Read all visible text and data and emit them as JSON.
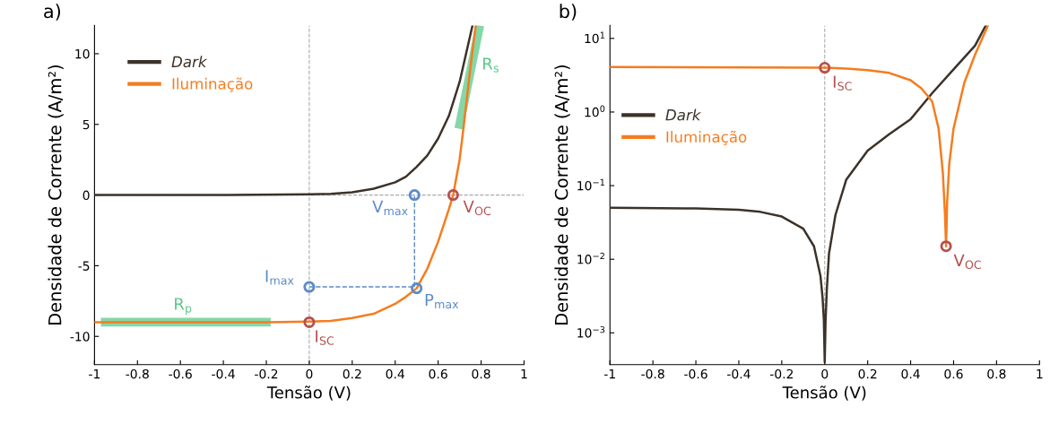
{
  "chart_data": [
    {
      "type": "line",
      "title": "a)",
      "xlabel": "Tensão (V)",
      "ylabel": "Densidade de Corrente (A/m²)",
      "xlim": [
        -1,
        1
      ],
      "ylim": [
        -12,
        12
      ],
      "xticks": [
        -1,
        -0.8,
        -0.6,
        -0.4,
        -0.2,
        0,
        0.2,
        0.4,
        0.6,
        0.8,
        1
      ],
      "yticks": [
        -10,
        -5,
        0,
        5,
        10
      ],
      "legend": "top left",
      "grid": false,
      "ref_lines": [
        {
          "axis": "x",
          "value": 0,
          "color": "#aaaaaa",
          "line_style": "dashed"
        },
        {
          "axis": "y",
          "value": 0,
          "color": "#aaaaaa",
          "line_style": "dashed"
        }
      ],
      "series": [
        {
          "name": "Dark",
          "color": "#3d3228",
          "x": [
            -1,
            -0.5,
            0,
            0.1,
            0.2,
            0.3,
            0.4,
            0.45,
            0.5,
            0.55,
            0.6,
            0.65,
            0.7,
            0.73,
            0.76
          ],
          "values": [
            0,
            0,
            0.05,
            0.08,
            0.2,
            0.45,
            0.9,
            1.3,
            2.0,
            2.8,
            4.0,
            5.6,
            8,
            10,
            12
          ]
        },
        {
          "name": "Iluminação",
          "color": "#f57c1f",
          "x": [
            -1,
            -0.2,
            0,
            0.1,
            0.2,
            0.3,
            0.4,
            0.45,
            0.5,
            0.55,
            0.6,
            0.65,
            0.67,
            0.7,
            0.72,
            0.75,
            0.775
          ],
          "values": [
            -9,
            -9,
            -8.95,
            -8.9,
            -8.7,
            -8.4,
            -7.7,
            -7.2,
            -6.6,
            -5.2,
            -3.3,
            -1.0,
            0,
            2.5,
            5,
            9,
            12
          ]
        },
        {
          "color": "#5cc98a",
          "x": [
            -0.95,
            -0.575,
            -0.2
          ],
          "values": [
            -9,
            -9,
            -9
          ]
        },
        {
          "color": "#5cc98a",
          "x": [
            0.7,
            0.745,
            0.79
          ],
          "values": [
            5,
            8.35,
            11.7
          ]
        },
        {
          "color": "#5b8bc9",
          "line_style": "dashed",
          "x": [
            0,
            0.49,
            0.49
          ],
          "values": [
            -6.5,
            -6.5,
            0
          ]
        },
        {
          "type": "scatter",
          "marker": "circle",
          "color": "#b5504f",
          "x": [
            0,
            0.67
          ],
          "values": [
            -9,
            0
          ]
        },
        {
          "type": "scatter",
          "marker": "circle",
          "color": "#5b8bc9",
          "x": [
            0.49,
            0,
            0.5
          ],
          "values": [
            0,
            -6.5,
            -6.6
          ]
        }
      ],
      "annotations": [
        {
          "text": "I$_{SC}$",
          "x": 0,
          "y": -9
        },
        {
          "text": "V$_{OC}$",
          "x": 0.67,
          "y": 0
        },
        {
          "text": "V$_{max}$",
          "x": 0.49,
          "y": 0
        },
        {
          "text": "I$_{max}$",
          "x": 0,
          "y": -6.5
        },
        {
          "text": "P$_{max}$",
          "x": 0.5,
          "y": -6.6
        },
        {
          "text": "R$_{s}$",
          "x": 0.745,
          "y": 8.35
        },
        {
          "text": "R$_{p}$",
          "x": -0.575,
          "y": -9
        }
      ]
    },
    {
      "type": "line",
      "title": "b)",
      "xlabel": "Tensão (V)",
      "ylabel": "Densidade de Corrente (A/m²)",
      "log": "y",
      "xlim": [
        -1,
        1
      ],
      "ylim": [
        0.00037,
        15
      ],
      "xticks": [
        -1,
        -0.8,
        -0.6,
        -0.4,
        -0.2,
        0,
        0.2,
        0.4,
        0.6,
        0.8,
        1
      ],
      "yticks": [
        {
          "value": 0.001,
          "label": "10$^{−3}$"
        },
        {
          "value": 0.01,
          "label": "10$^{−2}$"
        },
        {
          "value": 0.1,
          "label": "10$^{−1}$"
        },
        {
          "value": 1,
          "label": "10$^{0}$"
        },
        {
          "value": 10,
          "label": "10$^{1}$"
        }
      ],
      "legend": "left",
      "grid": false,
      "ref_lines": [
        {
          "axis": "x",
          "value": 0,
          "color": "#aaaaaa",
          "line_style": "dashed"
        }
      ],
      "series": [
        {
          "name": "Dark",
          "color": "#3d3228",
          "x": [
            -1,
            -0.6,
            -0.4,
            -0.3,
            -0.2,
            -0.1,
            -0.05,
            -0.02,
            -0.01,
            -0.004,
            0,
            0.004,
            0.01,
            0.02,
            0.05,
            0.1,
            0.2,
            0.3,
            0.4,
            0.5,
            0.6,
            0.7,
            0.75
          ],
          "values": [
            0.05,
            0.049,
            0.047,
            0.044,
            0.038,
            0.026,
            0.015,
            0.006,
            0.003,
            0.0015,
            0.0004,
            0.0015,
            0.004,
            0.012,
            0.04,
            0.12,
            0.3,
            0.5,
            0.8,
            1.8,
            3.8,
            8,
            15
          ]
        },
        {
          "name": "Iluminação",
          "color": "#f57c1f",
          "x": [
            -1,
            0,
            0.1,
            0.2,
            0.3,
            0.4,
            0.45,
            0.5,
            0.53,
            0.55,
            0.56,
            0.565,
            0.57,
            0.58,
            0.6,
            0.65,
            0.7,
            0.76
          ],
          "values": [
            4.1,
            4.0,
            3.9,
            3.7,
            3.4,
            2.7,
            2.1,
            1.4,
            0.6,
            0.15,
            0.04,
            0.015,
            0.06,
            0.2,
            0.6,
            2.5,
            6,
            15
          ]
        },
        {
          "type": "scatter",
          "marker": "circle",
          "color": "#b5504f",
          "x": [
            0,
            0.565
          ],
          "values": [
            4.0,
            0.015
          ]
        }
      ],
      "annotations": [
        {
          "text": "I$_{SC}$",
          "x": 0,
          "y": 4.0
        },
        {
          "text": "V$_{OC}$",
          "x": 0.565,
          "y": 0.015
        }
      ]
    }
  ]
}
